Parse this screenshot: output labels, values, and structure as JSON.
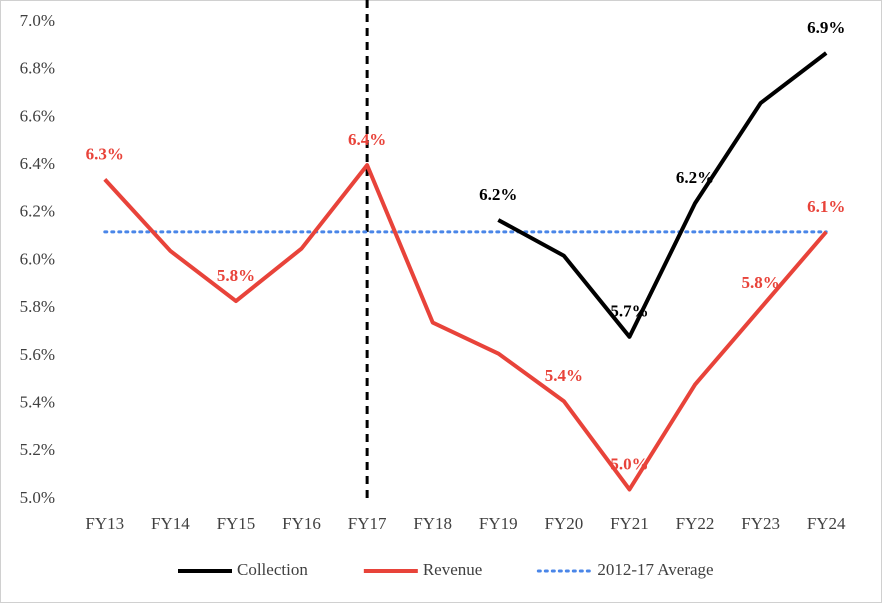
{
  "chart_data": {
    "type": "line",
    "categories": [
      "FY13",
      "FY14",
      "FY15",
      "FY16",
      "FY17",
      "FY18",
      "FY19",
      "FY20",
      "FY21",
      "FY22",
      "FY23",
      "FY24"
    ],
    "series": [
      {
        "name": "Collection",
        "color": "#000000",
        "style": "solid",
        "values": [
          null,
          null,
          null,
          null,
          null,
          null,
          6.17,
          6.02,
          5.68,
          6.24,
          6.66,
          6.87
        ],
        "value_labels": [
          null,
          null,
          null,
          null,
          null,
          null,
          "6.2%",
          null,
          "5.7%",
          "6.2%",
          null,
          "6.9%"
        ]
      },
      {
        "name": "Revenue",
        "color": "#e8433a",
        "style": "solid",
        "values": [
          6.34,
          6.04,
          5.83,
          6.05,
          6.4,
          5.74,
          5.61,
          5.41,
          5.04,
          5.48,
          5.8,
          6.12
        ],
        "value_labels": [
          "6.3%",
          null,
          "5.8%",
          null,
          "6.4%",
          null,
          null,
          "5.4%",
          "5.0%",
          null,
          "5.8%",
          "6.1%"
        ]
      },
      {
        "name": "2012-17 Average",
        "color": "#4a86e8",
        "style": "dotted",
        "values": [
          6.12,
          6.12,
          6.12,
          6.12,
          6.12,
          6.12,
          6.12,
          6.12,
          6.12,
          6.12,
          6.12,
          6.12
        ]
      }
    ],
    "marker_line": {
      "category": "FY17",
      "style": "dashed",
      "color": "#000000"
    },
    "ylim": [
      5.0,
      7.0
    ],
    "yticks": [
      {
        "value": 5.0,
        "label": "5.0%"
      },
      {
        "value": 5.2,
        "label": "5.2%"
      },
      {
        "value": 5.4,
        "label": "5.4%"
      },
      {
        "value": 5.6,
        "label": "5.6%"
      },
      {
        "value": 5.8,
        "label": "5.8%"
      },
      {
        "value": 6.0,
        "label": "6.0%"
      },
      {
        "value": 6.2,
        "label": "6.2%"
      },
      {
        "value": 6.4,
        "label": "6.4%"
      },
      {
        "value": 6.6,
        "label": "6.6%"
      },
      {
        "value": 6.8,
        "label": "6.8%"
      },
      {
        "value": 7.0,
        "label": "7.0%"
      }
    ],
    "grid": false,
    "legend": "bottom"
  }
}
